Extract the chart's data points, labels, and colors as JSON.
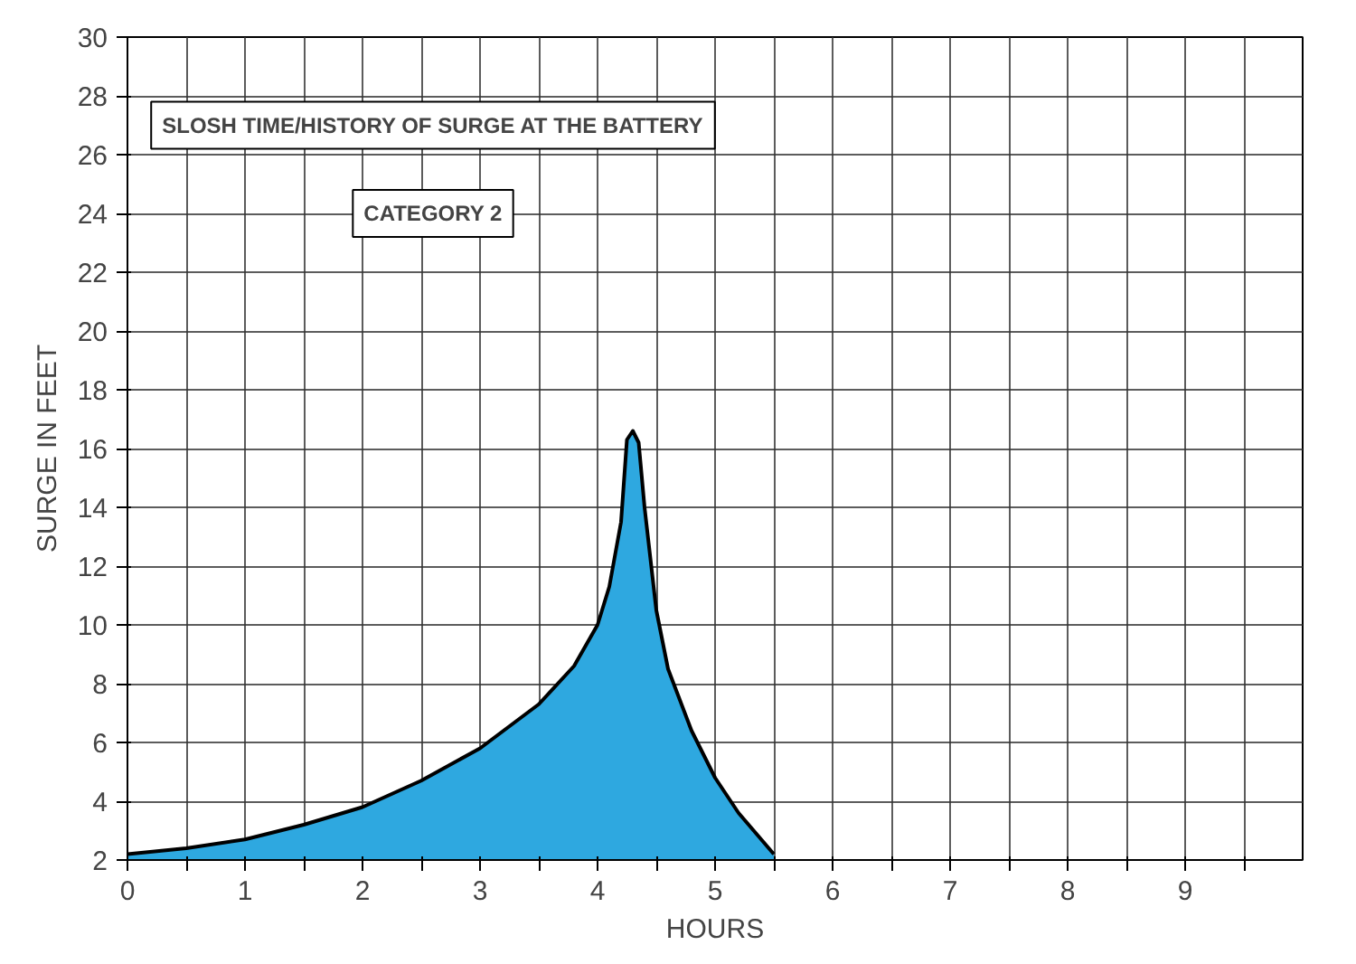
{
  "chart_data": {
    "type": "area",
    "title": "SLOSH TIME/HISTORY OF SURGE AT THE BATTERY",
    "subtitle": "CATEGORY 2",
    "xlabel": "HOURS",
    "ylabel": "SURGE IN FEET",
    "x": [
      0,
      0.5,
      1,
      1.5,
      2,
      2.5,
      3,
      3.5,
      3.8,
      4,
      4.1,
      4.2,
      4.25,
      4.3,
      4.35,
      4.4,
      4.5,
      4.6,
      4.8,
      5,
      5.2,
      5.5
    ],
    "series": [
      {
        "color": "#2ea8e0",
        "values": [
          2.2,
          2.4,
          2.7,
          3.2,
          3.8,
          4.7,
          5.8,
          7.3,
          8.6,
          10,
          11.3,
          13.5,
          16.3,
          16.6,
          16.2,
          14,
          10.5,
          8.5,
          6.4,
          4.8,
          3.6,
          2.2
        ]
      }
    ],
    "xlim": [
      0,
      10
    ],
    "ylim": [
      2,
      30
    ],
    "xticks": [
      0,
      {
        "value": 0.5,
        "label": null
      },
      1,
      {
        "value": 1.5,
        "label": null
      },
      2,
      {
        "value": 2.5,
        "label": null
      },
      3,
      {
        "value": 3.5,
        "label": null
      },
      4,
      {
        "value": 4.5,
        "label": null
      },
      5,
      {
        "value": 5.5,
        "label": null
      },
      6,
      {
        "value": 6.5,
        "label": null
      },
      7,
      {
        "value": 7.5,
        "label": null
      },
      8,
      {
        "value": 8.5,
        "label": null
      },
      9,
      {
        "value": 9.5,
        "label": null
      }
    ],
    "yticks": [
      2,
      4,
      6,
      8,
      10,
      12,
      14,
      16,
      18,
      20,
      22,
      24,
      26,
      28,
      30
    ],
    "grid": true
  }
}
